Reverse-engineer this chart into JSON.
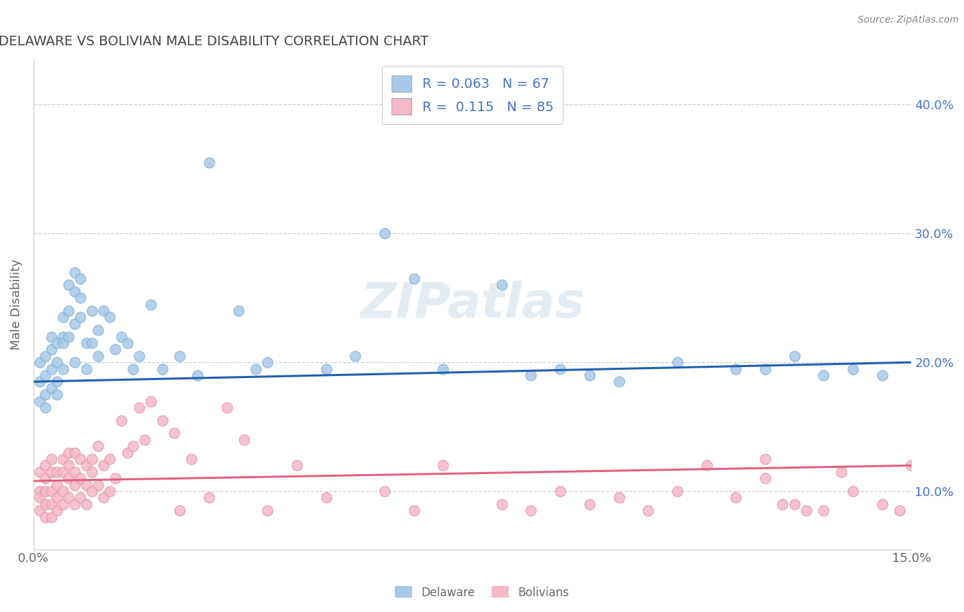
{
  "title": "DELAWARE VS BOLIVIAN MALE DISABILITY CORRELATION CHART",
  "source": "Source: ZipAtlas.com",
  "ylabel": "Male Disability",
  "xlabel": "",
  "xlim": [
    0.0,
    0.15
  ],
  "ylim": [
    0.055,
    0.435
  ],
  "xticks": [
    0.0,
    0.05,
    0.1,
    0.15
  ],
  "xtick_labels": [
    "0.0%",
    "",
    "",
    "15.0%"
  ],
  "yticks": [
    0.1,
    0.2,
    0.3,
    0.4
  ],
  "ytick_labels": [
    "10.0%",
    "20.0%",
    "30.0%",
    "40.0%"
  ],
  "delaware_color": "#a8c8e8",
  "delaware_edge": "#7aafd4",
  "bolivian_color": "#f4b8c8",
  "bolivian_edge": "#e090a8",
  "delaware_R": 0.063,
  "delaware_N": 67,
  "bolivian_R": 0.115,
  "bolivian_N": 85,
  "background_color": "#ffffff",
  "grid_color": "#cccccc",
  "title_color": "#444444",
  "axis_label_color": "#666666",
  "tick_color": "#4472c4",
  "trend_blue": "#2060b0",
  "trend_pink": "#e06080",
  "legend_text_color": "#4472c4",
  "delaware_x": [
    0.001,
    0.001,
    0.001,
    0.002,
    0.002,
    0.002,
    0.002,
    0.003,
    0.003,
    0.003,
    0.003,
    0.004,
    0.004,
    0.004,
    0.004,
    0.005,
    0.005,
    0.005,
    0.005,
    0.006,
    0.006,
    0.006,
    0.007,
    0.007,
    0.007,
    0.007,
    0.008,
    0.008,
    0.008,
    0.009,
    0.009,
    0.01,
    0.01,
    0.011,
    0.011,
    0.012,
    0.013,
    0.014,
    0.015,
    0.016,
    0.017,
    0.018,
    0.02,
    0.022,
    0.025,
    0.028,
    0.03,
    0.035,
    0.038,
    0.04,
    0.05,
    0.055,
    0.06,
    0.065,
    0.07,
    0.08,
    0.085,
    0.09,
    0.095,
    0.1,
    0.11,
    0.12,
    0.125,
    0.13,
    0.135,
    0.14,
    0.145
  ],
  "delaware_y": [
    0.17,
    0.185,
    0.2,
    0.175,
    0.19,
    0.205,
    0.165,
    0.195,
    0.21,
    0.18,
    0.22,
    0.185,
    0.2,
    0.215,
    0.175,
    0.22,
    0.195,
    0.215,
    0.235,
    0.26,
    0.24,
    0.22,
    0.27,
    0.255,
    0.23,
    0.2,
    0.265,
    0.25,
    0.235,
    0.215,
    0.195,
    0.24,
    0.215,
    0.225,
    0.205,
    0.24,
    0.235,
    0.21,
    0.22,
    0.215,
    0.195,
    0.205,
    0.245,
    0.195,
    0.205,
    0.19,
    0.355,
    0.24,
    0.195,
    0.2,
    0.195,
    0.205,
    0.3,
    0.265,
    0.195,
    0.26,
    0.19,
    0.195,
    0.19,
    0.185,
    0.2,
    0.195,
    0.195,
    0.205,
    0.19,
    0.195,
    0.19
  ],
  "bolivian_x": [
    0.001,
    0.001,
    0.001,
    0.001,
    0.002,
    0.002,
    0.002,
    0.002,
    0.002,
    0.003,
    0.003,
    0.003,
    0.003,
    0.003,
    0.004,
    0.004,
    0.004,
    0.004,
    0.005,
    0.005,
    0.005,
    0.005,
    0.006,
    0.006,
    0.006,
    0.006,
    0.007,
    0.007,
    0.007,
    0.007,
    0.008,
    0.008,
    0.008,
    0.009,
    0.009,
    0.009,
    0.01,
    0.01,
    0.01,
    0.011,
    0.011,
    0.012,
    0.012,
    0.013,
    0.013,
    0.014,
    0.015,
    0.016,
    0.017,
    0.018,
    0.019,
    0.02,
    0.022,
    0.024,
    0.025,
    0.027,
    0.03,
    0.033,
    0.036,
    0.04,
    0.045,
    0.05,
    0.06,
    0.065,
    0.07,
    0.08,
    0.085,
    0.09,
    0.095,
    0.1,
    0.105,
    0.11,
    0.115,
    0.12,
    0.125,
    0.13,
    0.135,
    0.14,
    0.145,
    0.148,
    0.15,
    0.125,
    0.128,
    0.132,
    0.138
  ],
  "bolivian_y": [
    0.115,
    0.1,
    0.095,
    0.085,
    0.12,
    0.11,
    0.1,
    0.09,
    0.08,
    0.125,
    0.115,
    0.1,
    0.09,
    0.08,
    0.115,
    0.105,
    0.095,
    0.085,
    0.125,
    0.115,
    0.1,
    0.09,
    0.13,
    0.12,
    0.11,
    0.095,
    0.13,
    0.115,
    0.105,
    0.09,
    0.125,
    0.11,
    0.095,
    0.12,
    0.105,
    0.09,
    0.125,
    0.115,
    0.1,
    0.135,
    0.105,
    0.12,
    0.095,
    0.125,
    0.1,
    0.11,
    0.155,
    0.13,
    0.135,
    0.165,
    0.14,
    0.17,
    0.155,
    0.145,
    0.085,
    0.125,
    0.095,
    0.165,
    0.14,
    0.085,
    0.12,
    0.095,
    0.1,
    0.085,
    0.12,
    0.09,
    0.085,
    0.1,
    0.09,
    0.095,
    0.085,
    0.1,
    0.12,
    0.095,
    0.11,
    0.09,
    0.085,
    0.1,
    0.09,
    0.085,
    0.12,
    0.125,
    0.09,
    0.085,
    0.115
  ]
}
